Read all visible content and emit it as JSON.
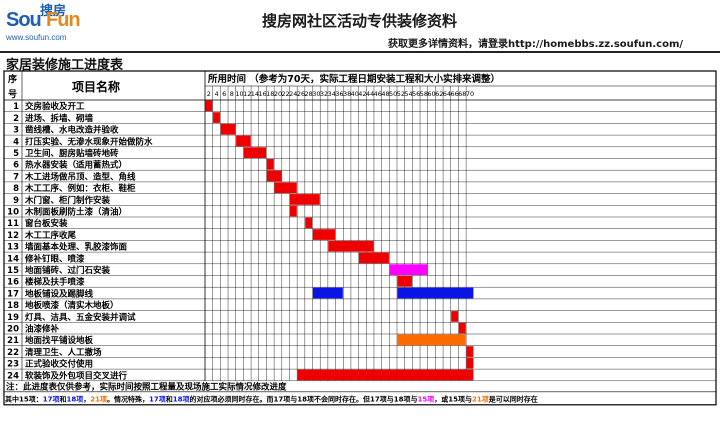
{
  "header": {
    "logo_cn": "搜房",
    "logo_sou": "Sou",
    "logo_fun": "Fun",
    "logo_url": "www.soufun.com",
    "title": "搜房网社区活动专供装修资料",
    "subtitle": "获取更多详情资料，请登录http://homebbs.zz.soufun.com/"
  },
  "document": {
    "title": "家居装修施工进度表",
    "col_no_top": "序",
    "col_no_bottom": "号",
    "col_name": "项目名称",
    "timeline_header": "所用时间 （参考为70天，实际工程日期安装工程和大小实排来调整）",
    "day_ticks": [
      2,
      4,
      6,
      8,
      10,
      12,
      14,
      16,
      18,
      20,
      22,
      24,
      26,
      28,
      30,
      32,
      34,
      36,
      38,
      40,
      42,
      44,
      46,
      48,
      50,
      52,
      54,
      56,
      58,
      60,
      62,
      64,
      66,
      68,
      70
    ],
    "note": "注：此进度表仅供参考，实际时间按照工程量及现场施工实际情况修改进度",
    "colors": {
      "red": "#ee0000",
      "blue": "#0a14e6",
      "magenta": "#ff00ff",
      "orange": "#ff6a00",
      "grid": "#000000"
    },
    "tasks": [
      {
        "no": "1",
        "name": "交房验收及开工",
        "bars": [
          {
            "start": 1,
            "end": 1,
            "color": "red"
          }
        ]
      },
      {
        "no": "2",
        "name": "进场、拆墙、砌墙",
        "bars": [
          {
            "start": 2,
            "end": 2,
            "color": "red"
          }
        ]
      },
      {
        "no": "3",
        "name": "凿线槽、水电改造并验收",
        "bars": [
          {
            "start": 3,
            "end": 4,
            "color": "red"
          }
        ]
      },
      {
        "no": "4",
        "name": "打压实验、无渗水现象开始做防水",
        "bars": [
          {
            "start": 5,
            "end": 6,
            "color": "red"
          }
        ]
      },
      {
        "no": "5",
        "name": "卫生间、厨房贴墙砖地砖",
        "bars": [
          {
            "start": 6,
            "end": 8,
            "color": "red"
          }
        ]
      },
      {
        "no": "6",
        "name": "热水器安装（适用蓄热式）",
        "bars": [
          {
            "start": 9,
            "end": 9,
            "color": "red"
          }
        ]
      },
      {
        "no": "7",
        "name": "木工进场做吊顶、造型、角线",
        "bars": [
          {
            "start": 9,
            "end": 10,
            "color": "red"
          }
        ]
      },
      {
        "no": "8",
        "name": "木工工序、例如：衣柜、鞋柜",
        "bars": [
          {
            "start": 10,
            "end": 12,
            "color": "red"
          }
        ]
      },
      {
        "no": "9",
        "name": "木门窗、柜门制作安装",
        "bars": [
          {
            "start": 12,
            "end": 15,
            "color": "red"
          }
        ]
      },
      {
        "no": "10",
        "name": "木制面板刷防土漆（清油）",
        "bars": [
          {
            "start": 12,
            "end": 12,
            "color": "red"
          }
        ]
      },
      {
        "no": "11",
        "name": "窗台板安装",
        "bars": [
          {
            "start": 14,
            "end": 14,
            "color": "red"
          }
        ]
      },
      {
        "no": "12",
        "name": "木工工序收尾",
        "bars": [
          {
            "start": 15,
            "end": 17,
            "color": "red"
          }
        ]
      },
      {
        "no": "13",
        "name": "墙面基本处理、乳胶漆饰面",
        "bars": [
          {
            "start": 17,
            "end": 22,
            "color": "red"
          }
        ]
      },
      {
        "no": "14",
        "name": "修补钉眼、喷漆",
        "bars": [
          {
            "start": 21,
            "end": 24,
            "color": "red"
          }
        ]
      },
      {
        "no": "15",
        "name": "地面铺砖、过门石安装",
        "bars": [
          {
            "start": 25,
            "end": 29,
            "color": "magenta"
          }
        ]
      },
      {
        "no": "16",
        "name": "楼梯及扶手喷漆",
        "bars": [
          {
            "start": 26,
            "end": 27,
            "color": "red"
          }
        ]
      },
      {
        "no": "17",
        "name": "地板铺设及踢脚线",
        "bars": [
          {
            "start": 15,
            "end": 18,
            "color": "blue"
          },
          {
            "start": 26,
            "end": 35,
            "color": "blue"
          }
        ]
      },
      {
        "no": "18",
        "name": "地板喷漆（清实木地板）",
        "bars": []
      },
      {
        "no": "19",
        "name": "灯具、洁具、五金安装并调试",
        "bars": [
          {
            "start": 33,
            "end": 33,
            "color": "red"
          }
        ]
      },
      {
        "no": "20",
        "name": "油漆修补",
        "bars": [
          {
            "start": 34,
            "end": 34,
            "color": "red"
          }
        ]
      },
      {
        "no": "21",
        "name": "地面找平铺设地板",
        "bars": [
          {
            "start": 26,
            "end": 34,
            "color": "orange"
          }
        ]
      },
      {
        "no": "22",
        "name": "清理卫生、人工撤场",
        "bars": [
          {
            "start": 35,
            "end": 35,
            "color": "red"
          }
        ]
      },
      {
        "no": "23",
        "name": "正式验收交付使用",
        "bars": [
          {
            "start": 35,
            "end": 35,
            "color": "red"
          }
        ]
      },
      {
        "no": "24",
        "name": "软装饰及外包项目交叉进行",
        "bars": [
          {
            "start": 13,
            "end": 35,
            "color": "red"
          }
        ]
      }
    ],
    "footer_segments": [
      {
        "text": "其中15项：",
        "color": "#000000"
      },
      {
        "text": "17项",
        "color": "#0a14e6"
      },
      {
        "text": "和",
        "color": "#000000"
      },
      {
        "text": "18项",
        "color": "#0a14e6"
      },
      {
        "text": "，",
        "color": "#000000"
      },
      {
        "text": "21项",
        "color": "#ff6a00"
      },
      {
        "text": "。情况特殊，",
        "color": "#000000"
      },
      {
        "text": "17项",
        "color": "#0a14e6"
      },
      {
        "text": "和",
        "color": "#000000"
      },
      {
        "text": "18项",
        "color": "#0a14e6"
      },
      {
        "text": "的对应项必须同时存在。而17项与18项不会同时存在。但17项与18项与",
        "color": "#000000"
      },
      {
        "text": "15项",
        "color": "#ff00ff"
      },
      {
        "text": "，或15项与",
        "color": "#000000"
      },
      {
        "text": "21项",
        "color": "#ff6a00"
      },
      {
        "text": "是可以同时存在",
        "color": "#000000"
      }
    ]
  }
}
